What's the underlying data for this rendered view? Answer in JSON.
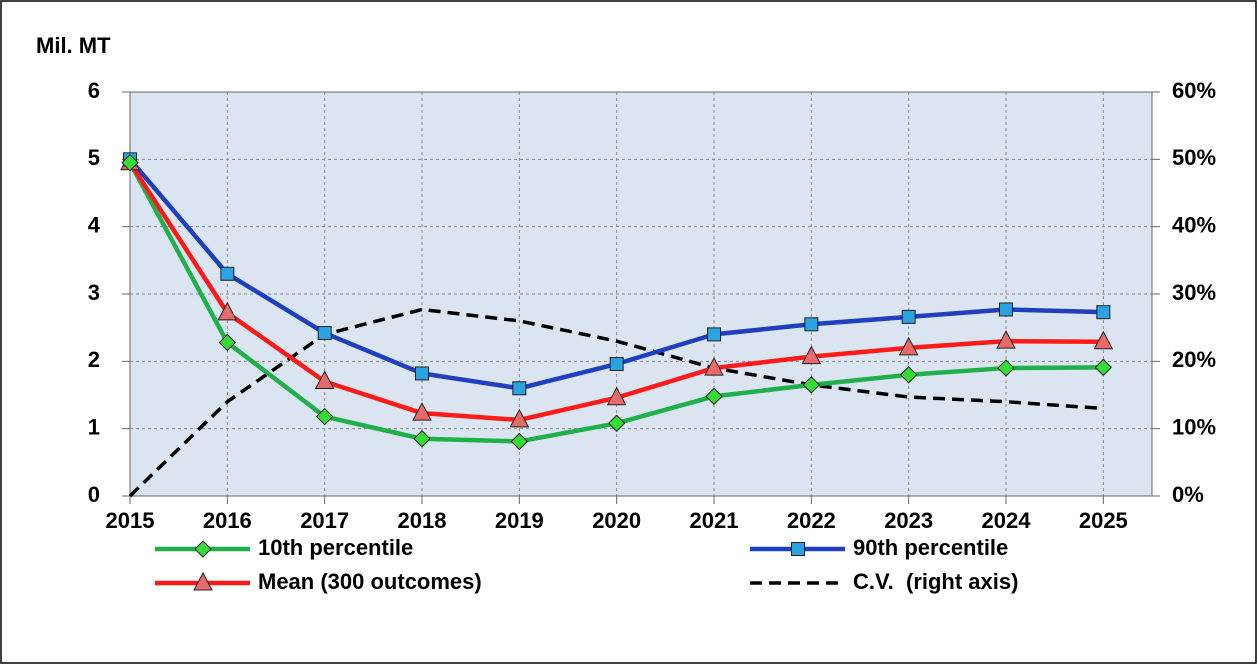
{
  "chart_data": {
    "type": "line",
    "y_label": "Mil. MT",
    "x": [
      2015,
      2016,
      2017,
      2018,
      2019,
      2020,
      2021,
      2022,
      2023,
      2024,
      2025
    ],
    "xlim": [
      2015,
      2025.5
    ],
    "xticks": [
      2015,
      2016,
      2017,
      2018,
      2019,
      2020,
      2021,
      2022,
      2023,
      2024,
      2025
    ],
    "ylim": [
      0,
      6
    ],
    "yticks": [
      0,
      1,
      2,
      3,
      4,
      5,
      6
    ],
    "y2lim": [
      0,
      60
    ],
    "y2ticks": [
      {
        "value": 0,
        "label": "0%"
      },
      {
        "value": 10,
        "label": "10%"
      },
      {
        "value": 20,
        "label": "20%"
      },
      {
        "value": 30,
        "label": "30%"
      },
      {
        "value": 40,
        "label": "40%"
      },
      {
        "value": 50,
        "label": "50%"
      },
      {
        "value": 60,
        "label": "60%"
      }
    ],
    "grid": true,
    "series": [
      {
        "name": "10th percentile",
        "color": "#1fb04a",
        "marker": "diamond",
        "marker_color": "#33dd33",
        "values": [
          4.95,
          2.28,
          1.18,
          0.85,
          0.81,
          1.08,
          1.48,
          1.65,
          1.8,
          1.9,
          1.91
        ]
      },
      {
        "name": "90th percentile",
        "color": "#1f3fbf",
        "marker": "square",
        "marker_color": "#2aa3e0",
        "values": [
          5.0,
          3.3,
          2.42,
          1.82,
          1.6,
          1.96,
          2.4,
          2.55,
          2.66,
          2.77,
          2.73
        ]
      },
      {
        "name": "Mean (300 outcomes)",
        "color": "#ff1a1a",
        "marker": "triangle",
        "marker_color": "#e86a6a",
        "values": [
          4.95,
          2.72,
          1.7,
          1.23,
          1.13,
          1.46,
          1.9,
          2.07,
          2.2,
          2.3,
          2.29
        ]
      },
      {
        "name": "C.V.  (right axis)",
        "color": "#000000",
        "dashed": true,
        "axis": "y2",
        "values": [
          0,
          14,
          24,
          27.7,
          26,
          23,
          19,
          16.5,
          14.7,
          14,
          13
        ]
      }
    ]
  }
}
